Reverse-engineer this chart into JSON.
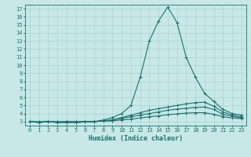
{
  "title": "",
  "xlabel": "Humidex (Indice chaleur)",
  "ylabel": "",
  "bg_color": "#c8e8e8",
  "grid_color": "#a8d4d4",
  "line_color": "#1a7070",
  "xlim": [
    -0.5,
    23.5
  ],
  "ylim": [
    2.5,
    17.5
  ],
  "xticks": [
    0,
    1,
    2,
    3,
    4,
    5,
    6,
    7,
    8,
    9,
    10,
    11,
    12,
    13,
    14,
    15,
    16,
    17,
    18,
    19,
    20,
    21,
    22,
    23
  ],
  "yticks": [
    3,
    4,
    5,
    6,
    7,
    8,
    9,
    10,
    11,
    12,
    13,
    14,
    15,
    16,
    17
  ],
  "series": [
    [
      3.0,
      3.0,
      3.0,
      3.0,
      3.0,
      3.0,
      3.0,
      3.0,
      3.2,
      3.5,
      4.0,
      5.0,
      8.5,
      13.0,
      15.5,
      17.2,
      15.3,
      11.0,
      8.5,
      6.5,
      5.5,
      4.5,
      4.0,
      3.8
    ],
    [
      3.0,
      2.9,
      3.0,
      2.9,
      2.9,
      2.9,
      2.95,
      3.0,
      3.1,
      3.2,
      3.5,
      3.8,
      4.1,
      4.4,
      4.6,
      4.8,
      5.0,
      5.2,
      5.35,
      5.4,
      4.9,
      4.2,
      3.8,
      3.6
    ],
    [
      3.0,
      2.9,
      3.0,
      2.9,
      3.0,
      2.95,
      3.0,
      3.0,
      3.1,
      3.2,
      3.4,
      3.6,
      3.8,
      4.0,
      4.2,
      4.4,
      4.55,
      4.65,
      4.75,
      4.8,
      4.5,
      3.9,
      3.65,
      3.45
    ],
    [
      3.0,
      2.9,
      3.0,
      2.9,
      2.9,
      2.9,
      2.95,
      3.0,
      3.05,
      3.1,
      3.2,
      3.3,
      3.45,
      3.6,
      3.7,
      3.85,
      3.95,
      4.05,
      4.1,
      4.1,
      3.9,
      3.6,
      3.45,
      3.35
    ]
  ]
}
